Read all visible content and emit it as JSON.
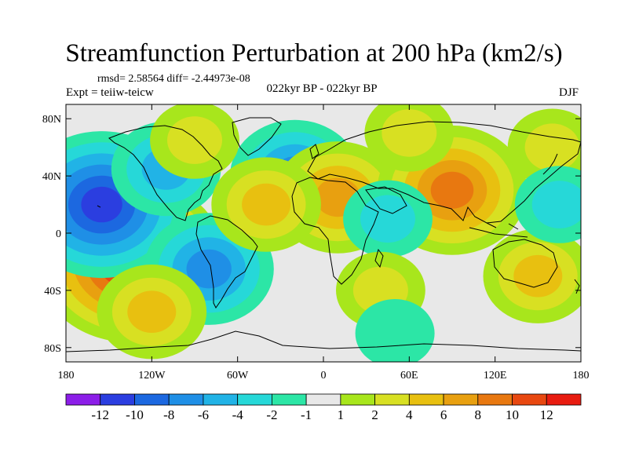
{
  "chart_data": {
    "type": "heatmap",
    "title": "Streamfunction Perturbation at 200 hPa (km2/s)",
    "stats_text": "rmsd= 2.58564 diff= -2.44973e-08",
    "left_subtitle": "Expt = teiiw-teicw",
    "center_subtitle": "022kyr BP - 022kyr BP",
    "right_subtitle": "DJF",
    "xlim": [
      -180,
      180
    ],
    "ylim": [
      -90,
      90
    ],
    "x_ticks": [
      {
        "value": -180,
        "label": "180"
      },
      {
        "value": -120,
        "label": "120W"
      },
      {
        "value": -60,
        "label": "60W"
      },
      {
        "value": 0,
        "label": "0"
      },
      {
        "value": 60,
        "label": "60E"
      },
      {
        "value": 120,
        "label": "120E"
      },
      {
        "value": 180,
        "label": "180"
      }
    ],
    "y_ticks": [
      {
        "value": 80,
        "label": "80N"
      },
      {
        "value": 40,
        "label": "40N"
      },
      {
        "value": 0,
        "label": "0"
      },
      {
        "value": -40,
        "label": "40S"
      },
      {
        "value": -80,
        "label": "80S"
      }
    ],
    "colorbar": {
      "colors": [
        "#8c1ee8",
        "#2b3ee0",
        "#1c68e0",
        "#1f8fe6",
        "#21b3e6",
        "#26d8d8",
        "#2ce6a6",
        "#e8e8e8",
        "#a8e61c",
        "#d8e022",
        "#e8c010",
        "#e8a010",
        "#e87810",
        "#e84810",
        "#e81c10"
      ],
      "labels": [
        "-12",
        "-10",
        "-8",
        "-6",
        "-4",
        "-2",
        "-1",
        "1",
        "2",
        "4",
        "6",
        "8",
        "10",
        "12"
      ]
    },
    "features": [
      {
        "lon": -135,
        "lat": -19,
        "value": 12
      },
      {
        "lon": -155,
        "lat": 20,
        "value": -10
      },
      {
        "lon": -80,
        "lat": -25,
        "value": -6
      },
      {
        "lon": -20,
        "lat": 40,
        "value": -6
      },
      {
        "lon": -110,
        "lat": 45,
        "value": -4
      },
      {
        "lon": 10,
        "lat": 25,
        "value": 6
      },
      {
        "lon": -40,
        "lat": 20,
        "value": 4
      },
      {
        "lon": 90,
        "lat": 30,
        "value": 8
      },
      {
        "lon": 45,
        "lat": 10,
        "value": -2
      },
      {
        "lon": -120,
        "lat": -55,
        "value": 4
      },
      {
        "lon": -90,
        "lat": 65,
        "value": 2
      },
      {
        "lon": 60,
        "lat": 70,
        "value": 2
      },
      {
        "lon": 40,
        "lat": -40,
        "value": 2
      },
      {
        "lon": 150,
        "lat": -30,
        "value": 4
      },
      {
        "lon": 50,
        "lat": -70,
        "value": -1
      },
      {
        "lon": 160,
        "lat": 60,
        "value": 2
      },
      {
        "lon": 165,
        "lat": 20,
        "value": -2
      }
    ]
  }
}
